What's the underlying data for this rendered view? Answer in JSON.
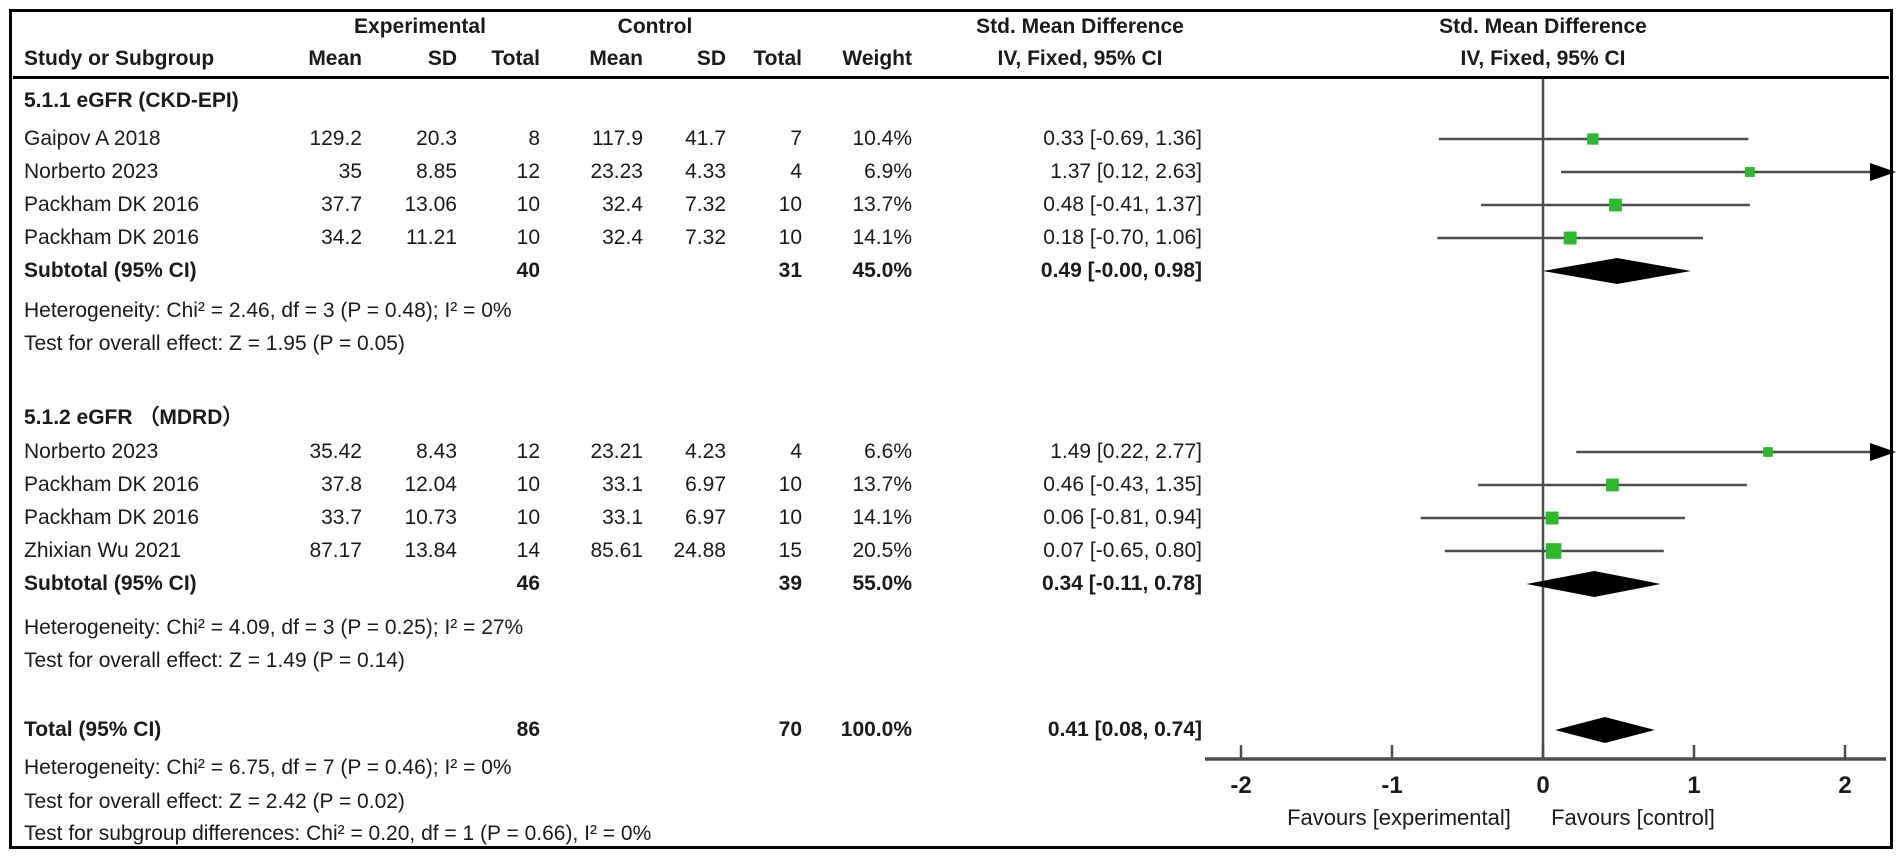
{
  "columns": {
    "study": "Study or Subgroup",
    "mean": "Mean",
    "sd": "SD",
    "total": "Total",
    "weight": "Weight",
    "group_experimental": "Experimental",
    "group_control": "Control",
    "effect_title": "Std. Mean Difference",
    "effect_subtitle": "IV, Fixed, 95% CI"
  },
  "plot_header": {
    "title": "Std. Mean Difference",
    "subtitle": "IV, Fixed, 95% CI"
  },
  "colors": {
    "marker_green": "#2db92d",
    "line_gray": "#4d4d4d",
    "diamond_black": "#000000",
    "text": "#1a1a1a"
  },
  "chart_data": {
    "type": "forest",
    "effect_measure": "Std. Mean Difference",
    "model": "IV, Fixed, 95% CI",
    "axis": {
      "min": -2,
      "max": 2,
      "ticks": [
        -2,
        -1,
        0,
        1,
        2
      ],
      "tick_labels": [
        "-2",
        "-1",
        "0",
        "1",
        "2"
      ],
      "favours_left": "Favours [experimental]",
      "favours_right": "Favours [control]"
    },
    "subgroups": [
      {
        "title": "5.1.1 eGFR (CKD-EPI)",
        "studies": [
          {
            "name": "Gaipov A 2018",
            "mean_e": "129.2",
            "sd_e": "20.3",
            "total_e": "8",
            "mean_c": "117.9",
            "sd_c": "41.7",
            "total_c": "7",
            "weight": "10.4%",
            "weight_val": 10.4,
            "smd": 0.33,
            "lo": -0.69,
            "hi": 1.36,
            "ci_text": "0.33 [-0.69, 1.36]"
          },
          {
            "name": "Norberto 2023",
            "mean_e": "35",
            "sd_e": "8.85",
            "total_e": "12",
            "mean_c": "23.23",
            "sd_c": "4.33",
            "total_c": "4",
            "weight": "6.9%",
            "weight_val": 6.9,
            "smd": 1.37,
            "lo": 0.12,
            "hi": 2.63,
            "ci_text": "1.37 [0.12, 2.63]"
          },
          {
            "name": "Packham DK 2016",
            "mean_e": "37.7",
            "sd_e": "13.06",
            "total_e": "10",
            "mean_c": "32.4",
            "sd_c": "7.32",
            "total_c": "10",
            "weight": "13.7%",
            "weight_val": 13.7,
            "smd": 0.48,
            "lo": -0.41,
            "hi": 1.37,
            "ci_text": "0.48 [-0.41, 1.37]"
          },
          {
            "name": "Packham DK 2016",
            "mean_e": "34.2",
            "sd_e": "11.21",
            "total_e": "10",
            "mean_c": "32.4",
            "sd_c": "7.32",
            "total_c": "10",
            "weight": "14.1%",
            "weight_val": 14.1,
            "smd": 0.18,
            "lo": -0.7,
            "hi": 1.06,
            "ci_text": "0.18 [-0.70, 1.06]"
          }
        ],
        "subtotal": {
          "label": "Subtotal (95% CI)",
          "total_e": "40",
          "total_c": "31",
          "weight": "45.0%",
          "smd": 0.49,
          "lo": 0.0,
          "hi": 0.98,
          "ci_text": "0.49 [-0.00, 0.98]"
        },
        "heterogeneity": "Heterogeneity: Chi² = 2.46, df = 3 (P = 0.48); I² = 0%",
        "overall_effect": "Test for overall effect: Z = 1.95 (P = 0.05)"
      },
      {
        "title": "5.1.2 eGFR （MDRD）",
        "studies": [
          {
            "name": "Norberto 2023",
            "mean_e": "35.42",
            "sd_e": "8.43",
            "total_e": "12",
            "mean_c": "23.21",
            "sd_c": "4.23",
            "total_c": "4",
            "weight": "6.6%",
            "weight_val": 6.6,
            "smd": 1.49,
            "lo": 0.22,
            "hi": 2.77,
            "ci_text": "1.49 [0.22, 2.77]"
          },
          {
            "name": "Packham DK 2016",
            "mean_e": "37.8",
            "sd_e": "12.04",
            "total_e": "10",
            "mean_c": "33.1",
            "sd_c": "6.97",
            "total_c": "10",
            "weight": "13.7%",
            "weight_val": 13.7,
            "smd": 0.46,
            "lo": -0.43,
            "hi": 1.35,
            "ci_text": "0.46 [-0.43, 1.35]"
          },
          {
            "name": "Packham DK 2016",
            "mean_e": "33.7",
            "sd_e": "10.73",
            "total_e": "10",
            "mean_c": "33.1",
            "sd_c": "6.97",
            "total_c": "10",
            "weight": "14.1%",
            "weight_val": 14.1,
            "smd": 0.06,
            "lo": -0.81,
            "hi": 0.94,
            "ci_text": "0.06 [-0.81, 0.94]"
          },
          {
            "name": "Zhixian Wu 2021",
            "mean_e": "87.17",
            "sd_e": "13.84",
            "total_e": "14",
            "mean_c": "85.61",
            "sd_c": "24.88",
            "total_c": "15",
            "weight": "20.5%",
            "weight_val": 20.5,
            "smd": 0.07,
            "lo": -0.65,
            "hi": 0.8,
            "ci_text": "0.07 [-0.65, 0.80]"
          }
        ],
        "subtotal": {
          "label": "Subtotal (95% CI)",
          "total_e": "46",
          "total_c": "39",
          "weight": "55.0%",
          "smd": 0.34,
          "lo": -0.11,
          "hi": 0.78,
          "ci_text": "0.34 [-0.11, 0.78]"
        },
        "heterogeneity": "Heterogeneity: Chi² = 4.09, df = 3 (P = 0.25); I² = 27%",
        "overall_effect": "Test for overall effect: Z = 1.49 (P = 0.14)"
      }
    ],
    "total": {
      "label": "Total (95% CI)",
      "total_e": "86",
      "total_c": "70",
      "weight": "100.0%",
      "smd": 0.41,
      "lo": 0.08,
      "hi": 0.74,
      "ci_text": "0.41 [0.08, 0.74]"
    },
    "total_heterogeneity": "Heterogeneity: Chi² = 6.75, df = 7 (P = 0.46); I² = 0%",
    "total_overall_effect": "Test for overall effect: Z = 2.42 (P = 0.02)",
    "subgroup_difference": "Test for subgroup differences: Chi² = 0.20, df = 1 (P = 0.66), I² = 0%"
  }
}
